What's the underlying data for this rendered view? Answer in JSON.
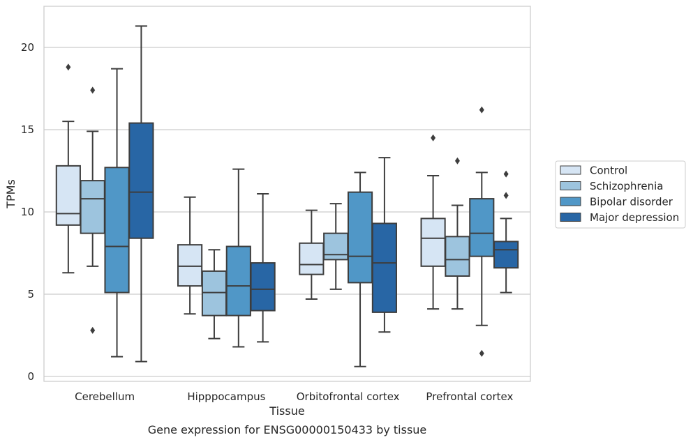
{
  "chart_data": {
    "type": "box",
    "xlabel": "Tissue",
    "ylabel": "TPMs",
    "caption": "Gene expression for ENSG00000150433 by tissue",
    "ylim": [
      -0.3,
      22.5
    ],
    "yticks": [
      0,
      5,
      10,
      15,
      20
    ],
    "grid": "horizontal",
    "legend_position": "right",
    "categories": [
      "Cerebellum",
      "Hipppocampus",
      "Orbitofrontal cortex",
      "Prefrontal cortex"
    ],
    "series": [
      {
        "name": "Control",
        "color": "#d6e5f4",
        "boxes": [
          {
            "whislo": 6.3,
            "q1": 9.2,
            "med": 9.9,
            "q3": 12.8,
            "whishi": 15.5,
            "fliers": [
              18.8
            ]
          },
          {
            "whislo": 3.8,
            "q1": 5.5,
            "med": 6.7,
            "q3": 8.0,
            "whishi": 10.9,
            "fliers": []
          },
          {
            "whislo": 4.7,
            "q1": 6.2,
            "med": 6.8,
            "q3": 8.1,
            "whishi": 10.1,
            "fliers": []
          },
          {
            "whislo": 4.1,
            "q1": 6.7,
            "med": 8.4,
            "q3": 9.6,
            "whishi": 12.2,
            "fliers": [
              14.5
            ]
          }
        ]
      },
      {
        "name": "Schizophrenia",
        "color": "#9dc4de",
        "boxes": [
          {
            "whislo": 6.7,
            "q1": 8.7,
            "med": 10.8,
            "q3": 11.9,
            "whishi": 14.9,
            "fliers": [
              17.4,
              2.8
            ]
          },
          {
            "whislo": 2.3,
            "q1": 3.7,
            "med": 5.1,
            "q3": 6.4,
            "whishi": 7.7,
            "fliers": []
          },
          {
            "whislo": 5.3,
            "q1": 7.1,
            "med": 7.4,
            "q3": 8.7,
            "whishi": 10.5,
            "fliers": []
          },
          {
            "whislo": 4.1,
            "q1": 6.1,
            "med": 7.1,
            "q3": 8.5,
            "whishi": 10.4,
            "fliers": [
              13.1
            ]
          }
        ]
      },
      {
        "name": "Bipolar disorder",
        "color": "#5097c7",
        "boxes": [
          {
            "whislo": 1.2,
            "q1": 5.1,
            "med": 7.9,
            "q3": 12.7,
            "whishi": 18.7,
            "fliers": []
          },
          {
            "whislo": 1.8,
            "q1": 3.7,
            "med": 5.5,
            "q3": 7.9,
            "whishi": 12.6,
            "fliers": []
          },
          {
            "whislo": 0.6,
            "q1": 5.7,
            "med": 7.3,
            "q3": 11.2,
            "whishi": 12.4,
            "fliers": []
          },
          {
            "whislo": 3.1,
            "q1": 7.3,
            "med": 8.7,
            "q3": 10.8,
            "whishi": 12.4,
            "fliers": [
              16.2,
              1.4
            ]
          }
        ]
      },
      {
        "name": "Major depression",
        "color": "#2866a5",
        "boxes": [
          {
            "whislo": 0.9,
            "q1": 8.4,
            "med": 11.2,
            "q3": 15.4,
            "whishi": 21.3,
            "fliers": []
          },
          {
            "whislo": 2.1,
            "q1": 4.0,
            "med": 5.3,
            "q3": 6.9,
            "whishi": 11.1,
            "fliers": []
          },
          {
            "whislo": 2.7,
            "q1": 3.9,
            "med": 6.9,
            "q3": 9.3,
            "whishi": 13.3,
            "fliers": []
          },
          {
            "whislo": 5.1,
            "q1": 6.6,
            "med": 7.7,
            "q3": 8.2,
            "whishi": 9.6,
            "fliers": [
              12.3,
              11.0
            ]
          }
        ]
      }
    ]
  }
}
